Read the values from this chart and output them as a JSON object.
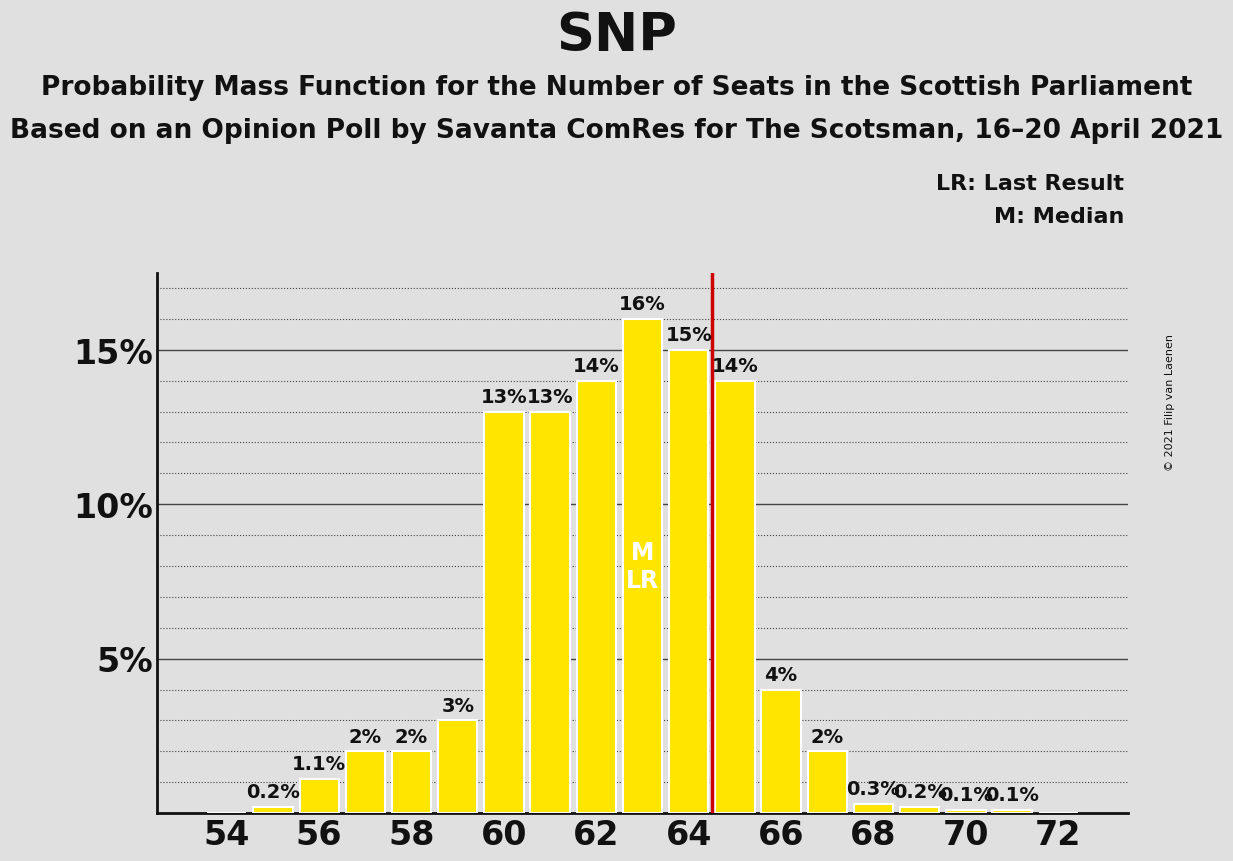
{
  "title": "SNP",
  "subtitle1": "Probability Mass Function for the Number of Seats in the Scottish Parliament",
  "subtitle2": "Based on an Opinion Poll by Savanta ComRes for The Scotsman, 16–20 April 2021",
  "copyright": "© 2021 Filip van Laenen",
  "legend_lr": "LR: Last Result",
  "legend_m": "M: Median",
  "seats": [
    54,
    55,
    56,
    57,
    58,
    59,
    60,
    61,
    62,
    63,
    64,
    65,
    66,
    67,
    68,
    69,
    70,
    71,
    72
  ],
  "probabilities": [
    0.0,
    0.2,
    1.1,
    2.0,
    2.0,
    3.0,
    13.0,
    13.0,
    14.0,
    16.0,
    15.0,
    14.0,
    4.0,
    2.0,
    0.3,
    0.2,
    0.1,
    0.1,
    0.0
  ],
  "bar_color": "#FFE500",
  "bar_edgecolor": "#FFFFFF",
  "median_seat": 63,
  "lr_seat": 64.5,
  "lr_color": "#CC0000",
  "background_color": "#E0E0E0",
  "plot_background": "#E0E0E0",
  "ylim": [
    0,
    17.5
  ],
  "xlabel_fontsize": 24,
  "ylabel_fontsize": 24,
  "title_fontsize": 38,
  "subtitle_fontsize": 19,
  "bar_label_fontsize": 14,
  "grid_color": "#444444",
  "axis_color": "#111111",
  "text_color": "#111111"
}
